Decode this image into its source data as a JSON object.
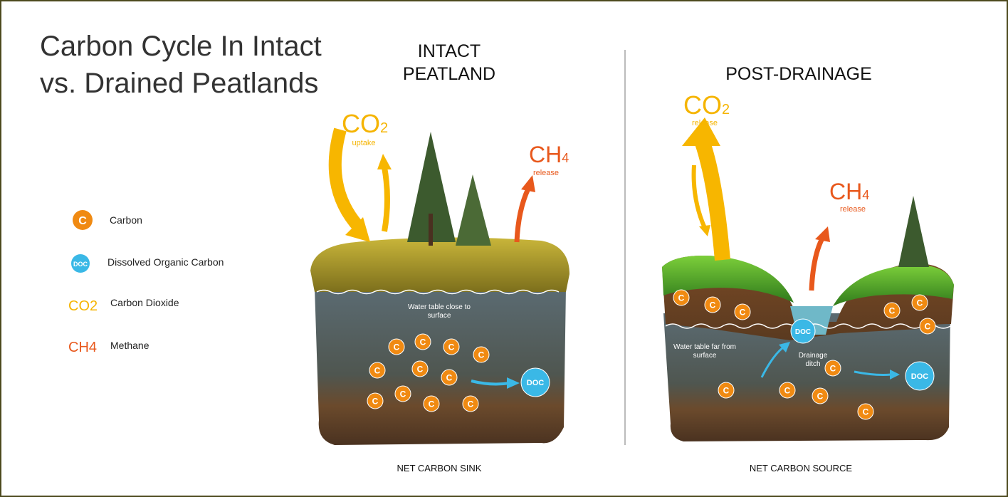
{
  "header": {
    "title_lines": [
      "Carbon Cycle In Intact",
      "vs. Drained Peatlands"
    ]
  },
  "legend": [
    {
      "symbol": "C",
      "label": "Carbon"
    },
    {
      "symbol": "DOC",
      "label": "Dissolved Organic Carbon"
    },
    {
      "symbol": "CO2",
      "label": "Carbon Dioxide"
    },
    {
      "symbol": "CH4",
      "label": "Methane"
    }
  ],
  "intact": {
    "title_lines": [
      "INTACT",
      "PEATLAND"
    ],
    "co2": {
      "formula": "CO",
      "subscript": "2",
      "note": "uptake"
    },
    "ch4": {
      "formula": "CH",
      "subscript": "4",
      "note": "release"
    },
    "water_table_lines": [
      "Water table close to",
      "surface"
    ],
    "carbon": "C",
    "doc": "DOC",
    "caption": "NET CARBON SINK"
  },
  "drained": {
    "title": "POST-DRAINAGE",
    "co2": {
      "formula": "CO",
      "subscript": "2",
      "note": "release"
    },
    "ch4": {
      "formula": "CH",
      "subscript": "4",
      "note": "release"
    },
    "water_table_lines": [
      "Water table far from",
      "surface"
    ],
    "ditch_lines": [
      "Drainage",
      "ditch"
    ],
    "carbon": "C",
    "doc": "DOC",
    "caption": "NET CARBON SOURCE"
  }
}
